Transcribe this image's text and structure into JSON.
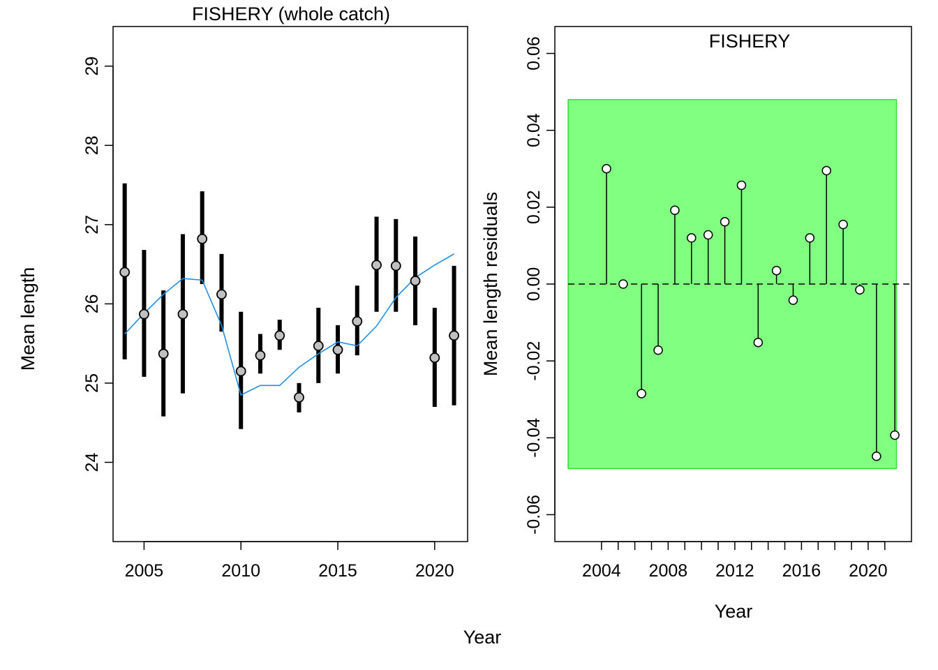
{
  "figure": {
    "shared_xlabel": "Year"
  },
  "chart_data": [
    {
      "type": "scatter",
      "title": "FISHERY (whole catch)",
      "xlabel": "",
      "ylabel": "Mean length",
      "xlim": [
        2003.4,
        2021.7
      ],
      "ylim": [
        23.0,
        29.5
      ],
      "x_ticks": [
        2005,
        2010,
        2015,
        2020
      ],
      "y_ticks": [
        24,
        25,
        26,
        27,
        28,
        29
      ],
      "grid": false,
      "observed": {
        "years": [
          2004,
          2005,
          2006,
          2007,
          2008,
          2009,
          2010,
          2011,
          2012,
          2013,
          2014,
          2015,
          2016,
          2017,
          2018,
          2019,
          2020,
          2021
        ],
        "values": [
          26.4,
          25.87,
          25.37,
          25.87,
          26.82,
          26.12,
          25.15,
          25.35,
          25.6,
          24.82,
          25.47,
          25.42,
          25.78,
          26.49,
          26.48,
          26.29,
          25.32,
          25.6
        ],
        "lower": [
          25.3,
          25.08,
          24.58,
          24.87,
          26.25,
          25.65,
          24.42,
          25.12,
          25.42,
          24.63,
          25.0,
          25.12,
          25.35,
          25.9,
          25.9,
          25.73,
          24.7,
          24.72
        ],
        "upper": [
          27.52,
          26.68,
          26.17,
          26.88,
          27.42,
          26.63,
          25.9,
          25.62,
          25.8,
          25.0,
          25.95,
          25.73,
          26.23,
          27.1,
          27.07,
          26.85,
          25.95,
          26.48
        ],
        "point_fill": "#c0c0c0",
        "bar_color": "#000000"
      },
      "expected": {
        "years": [
          2004,
          2005,
          2006,
          2007,
          2008,
          2009,
          2010,
          2011,
          2012,
          2013,
          2014,
          2015,
          2016,
          2017,
          2018,
          2019,
          2020,
          2021
        ],
        "values": [
          25.62,
          25.88,
          26.12,
          26.32,
          26.3,
          25.73,
          24.85,
          24.97,
          24.97,
          25.2,
          25.37,
          25.52,
          25.47,
          25.72,
          26.08,
          26.33,
          26.49,
          26.63
        ],
        "color": "#1e8fe0"
      }
    },
    {
      "type": "scatter",
      "title": "FISHERY",
      "xlabel": "Year",
      "ylabel": "Mean length residuals",
      "xlim": [
        2001.2,
        2022.6
      ],
      "ylim": [
        -0.067,
        0.067
      ],
      "x_ticks": [
        2004,
        2005,
        2006,
        2007,
        2008,
        2009,
        2010,
        2011,
        2012,
        2013,
        2014,
        2015,
        2016,
        2017,
        2018,
        2019,
        2020,
        2021
      ],
      "x_tick_labels_shown": [
        2004,
        2008,
        2012,
        2016,
        2020
      ],
      "y_ticks": [
        -0.06,
        -0.04,
        -0.02,
        0.0,
        0.02,
        0.04,
        0.06
      ],
      "y_tick_labels": [
        "-0.06",
        "-0.04",
        "-0.02",
        "0.00",
        "0.02",
        "0.04",
        "0.06"
      ],
      "grid": false,
      "band": {
        "x_range": [
          2002.0,
          2021.7
        ],
        "y_range": [
          -0.048,
          0.048
        ],
        "fill": "#80ff80",
        "stroke": "#33dd33"
      },
      "zero_line": 0.0,
      "residuals": {
        "years": [
          2004.3,
          2005.3,
          2006.4,
          2007.4,
          2008.4,
          2009.4,
          2010.4,
          2011.4,
          2012.4,
          2013.4,
          2014.5,
          2015.5,
          2016.5,
          2017.5,
          2018.5,
          2019.5,
          2020.5,
          2021.6
        ],
        "values": [
          0.03,
          0.0,
          -0.0285,
          -0.0172,
          0.0192,
          0.012,
          0.0128,
          0.0162,
          0.0257,
          -0.0152,
          0.0035,
          -0.0042,
          0.012,
          0.0295,
          0.0155,
          -0.0015,
          -0.0448,
          -0.0393
        ],
        "point_fill": "#ffffff"
      }
    }
  ]
}
